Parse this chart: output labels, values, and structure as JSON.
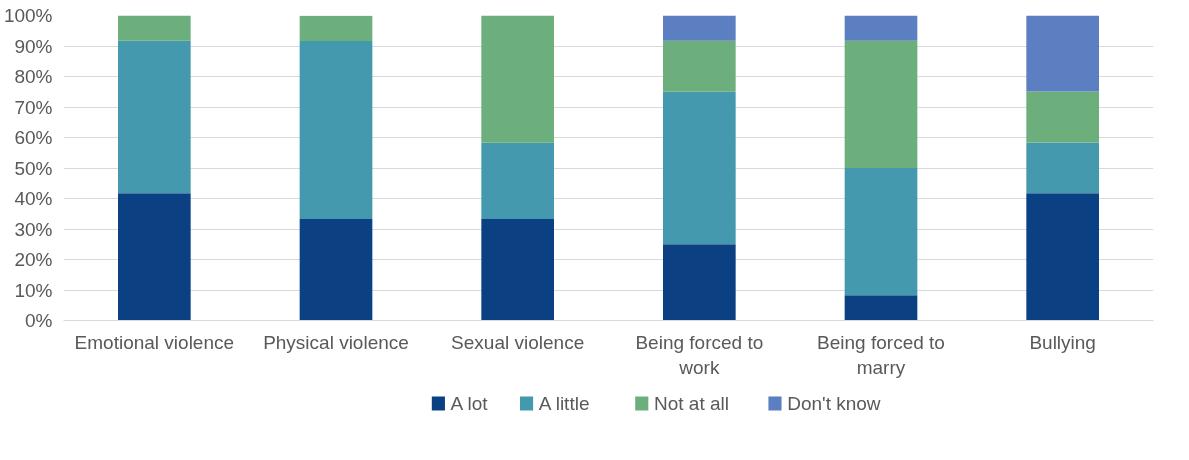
{
  "chart_data": {
    "type": "bar",
    "stacked": true,
    "categories": [
      "Emotional violence",
      "Physical violence",
      "Sexual violence",
      "Being forced to work",
      "Being forced to marry",
      "Bullying"
    ],
    "series": [
      {
        "name": "A lot",
        "color": "#0b4182",
        "values": [
          41.7,
          33.3,
          33.3,
          25,
          8.3,
          41.7
        ]
      },
      {
        "name": "A little",
        "color": "#4499ae",
        "values": [
          50,
          58.3,
          25,
          50,
          41.7,
          16.7
        ]
      },
      {
        "name": "Not at all",
        "color": "#6caf7c",
        "values": [
          8.3,
          8.3,
          41.7,
          16.7,
          41.7,
          16.7
        ]
      },
      {
        "name": "Don't know",
        "color": "#5b7fc0",
        "values": [
          0,
          0,
          0,
          8.3,
          8.3,
          25
        ]
      }
    ],
    "ylim": [
      0,
      100
    ],
    "yticks": [
      {
        "value": 0,
        "label": "0%"
      },
      {
        "value": 10,
        "label": "10%"
      },
      {
        "value": 20,
        "label": "20%"
      },
      {
        "value": 30,
        "label": "30%"
      },
      {
        "value": 40,
        "label": "40%"
      },
      {
        "value": 50,
        "label": "50%"
      },
      {
        "value": 60,
        "label": "60%"
      },
      {
        "value": 70,
        "label": "70%"
      },
      {
        "value": 80,
        "label": "80%"
      },
      {
        "value": 90,
        "label": "90%"
      },
      {
        "value": 100,
        "label": "100%"
      }
    ],
    "grid": "y",
    "legend": "bottom"
  }
}
